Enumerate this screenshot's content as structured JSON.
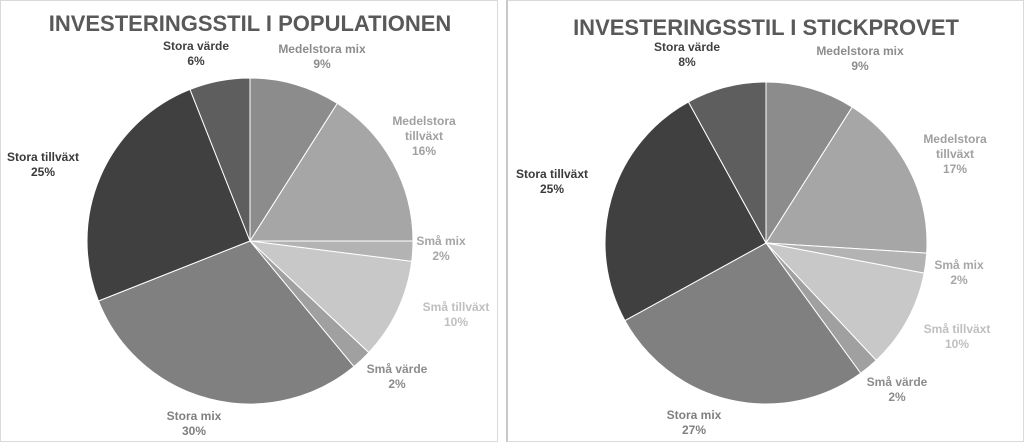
{
  "chart_data": [
    {
      "type": "pie",
      "title": "INVESTERINGSSTIL I POPULATIONEN",
      "slices": [
        {
          "name": "Medelstora mix",
          "value": 9,
          "label": "9%",
          "color": "#8c8c8c",
          "label_color": "#8c8c8c"
        },
        {
          "name_lines": [
            "Medelstora",
            "tillväxt"
          ],
          "name": "Medelstora tillväxt",
          "value": 16,
          "label": "16%",
          "color": "#a6a6a6",
          "label_color": "#a0a0a0"
        },
        {
          "name": "Små mix",
          "value": 2,
          "label": "2%",
          "color": "#b3b3b3",
          "label_color": "#a6a6a6"
        },
        {
          "name": "Små tillväxt",
          "value": 10,
          "label": "10%",
          "color": "#c8c8c8",
          "label_color": "#bfbfbf"
        },
        {
          "name": "Små värde",
          "value": 2,
          "label": "2%",
          "color": "#a0a0a0",
          "label_color": "#8c8c8c"
        },
        {
          "name": "Stora mix",
          "value": 30,
          "label": "30%",
          "color": "#808080",
          "label_color": "#7f7f7f"
        },
        {
          "name": "Stora tillväxt",
          "value": 25,
          "label": "25%",
          "color": "#404040",
          "label_color": "#3a3a3a"
        },
        {
          "name": "Stora värde",
          "value": 6,
          "label": "6%",
          "color": "#5e5e5e",
          "label_color": "#404040"
        }
      ]
    },
    {
      "type": "pie",
      "title": "INVESTERINGSSTIL I STICKPROVET",
      "slices": [
        {
          "name": "Medelstora mix",
          "value": 9,
          "label": "9%",
          "color": "#8c8c8c",
          "label_color": "#8c8c8c"
        },
        {
          "name_lines": [
            "Medelstora",
            "tillväxt"
          ],
          "name": "Medelstora tillväxt",
          "value": 17,
          "label": "17%",
          "color": "#a6a6a6",
          "label_color": "#a0a0a0"
        },
        {
          "name": "Små mix",
          "value": 2,
          "label": "2%",
          "color": "#b3b3b3",
          "label_color": "#a6a6a6"
        },
        {
          "name": "Små tillväxt",
          "value": 10,
          "label": "10%",
          "color": "#c8c8c8",
          "label_color": "#bfbfbf"
        },
        {
          "name": "Små värde",
          "value": 2,
          "label": "2%",
          "color": "#a0a0a0",
          "label_color": "#8c8c8c"
        },
        {
          "name": "Stora mix",
          "value": 27,
          "label": "27%",
          "color": "#808080",
          "label_color": "#7f7f7f"
        },
        {
          "name": "Stora tillväxt",
          "value": 25,
          "label": "25%",
          "color": "#404040",
          "label_color": "#3a3a3a"
        },
        {
          "name": "Stora värde",
          "value": 8,
          "label": "8%",
          "color": "#5e5e5e",
          "label_color": "#404040"
        }
      ]
    }
  ]
}
